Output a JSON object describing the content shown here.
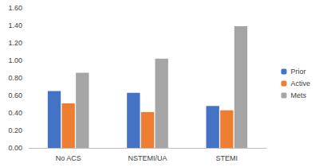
{
  "chart_data": {
    "type": "bar",
    "categories": [
      "No ACS",
      "NSTEMI/UA",
      "STEMI"
    ],
    "series": [
      {
        "name": "Prior",
        "color": "#4472c4",
        "values": [
          0.65,
          0.63,
          0.48
        ]
      },
      {
        "name": "Active",
        "color": "#ed7d31",
        "values": [
          0.51,
          0.41,
          0.43
        ]
      },
      {
        "name": "Mets",
        "color": "#a5a5a5",
        "values": [
          0.86,
          1.02,
          1.39
        ]
      }
    ],
    "ylim": [
      0,
      1.6
    ],
    "yticks": [
      {
        "value": 0,
        "label": "0.00"
      },
      {
        "value": 0.2,
        "label": "0.20"
      },
      {
        "value": 0.4,
        "label": "0.40"
      },
      {
        "value": 0.6,
        "label": "0.60"
      },
      {
        "value": 0.8,
        "label": "0.80"
      },
      {
        "value": 1.0,
        "label": "1.00"
      },
      {
        "value": 1.2,
        "label": "1.20"
      },
      {
        "value": 1.4,
        "label": "1.40"
      },
      {
        "value": 1.6,
        "label": "1.60"
      }
    ],
    "grid": false,
    "legend": "right"
  }
}
